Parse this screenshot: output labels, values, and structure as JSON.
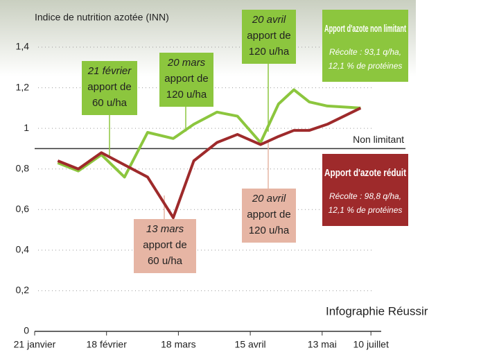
{
  "chart_data": {
    "type": "line",
    "y_label": "Indice de nutrition azotée (INN)",
    "xlim": [
      0,
      135
    ],
    "xticks": [
      {
        "value": 0,
        "label": "21 janvier"
      },
      {
        "value": 28,
        "label": "18 février"
      },
      {
        "value": 56,
        "label": "18 mars"
      },
      {
        "value": 84,
        "label": "15 avril"
      },
      {
        "value": 112,
        "label": "13 mai"
      },
      {
        "value": 131,
        "label": "10 juillet"
      }
    ],
    "ylim": [
      0,
      1.4
    ],
    "yticks": [
      0,
      {
        "value": 0.2,
        "label": "0,2"
      },
      {
        "value": 0.4,
        "label": "0,4"
      },
      {
        "value": 0.6,
        "label": "0,6"
      },
      {
        "value": 0.8,
        "label": "0,8"
      },
      1,
      {
        "value": 1.2,
        "label": "1,2"
      },
      {
        "value": 1.4,
        "label": "1,4"
      }
    ],
    "grid": true,
    "x": [
      9,
      17,
      26,
      35,
      44,
      54,
      62,
      71,
      79,
      88,
      95,
      101,
      107,
      114,
      127
    ],
    "series": [
      {
        "name": "Apport d'azote non limitant",
        "color": "#8cc63e",
        "note": [
          "Récolte : 93,1 q/ha,",
          "12,1 % de protéines"
        ],
        "values": [
          0.83,
          0.79,
          0.87,
          0.76,
          0.98,
          0.95,
          1.02,
          1.08,
          1.06,
          0.93,
          1.12,
          1.19,
          1.13,
          1.11,
          1.1
        ]
      },
      {
        "name": "Apport d'azote réduit",
        "color": "#9e2a2b",
        "note": [
          "Récolte : 98,8 q/ha,",
          "12,1 % de protéines"
        ],
        "values": [
          0.84,
          0.8,
          0.88,
          0.82,
          0.76,
          0.56,
          0.84,
          0.93,
          0.97,
          0.92,
          0.96,
          0.99,
          0.99,
          1.02,
          1.1
        ]
      }
    ],
    "threshold": {
      "value": 0.9,
      "label": "Non limitant"
    },
    "annotations": [
      {
        "lines": [
          "21 février",
          "apport de",
          "60 u/ha"
        ],
        "color": "#8cc63e"
      },
      {
        "lines": [
          "20 mars",
          "apport de",
          "120 u/ha"
        ],
        "color": "#8cc63e"
      },
      {
        "lines": [
          "20 avril",
          "apport de",
          "120 u/ha"
        ],
        "color": "#8cc63e"
      },
      {
        "lines": [
          "13 mars",
          "apport de",
          "60 u/ha"
        ],
        "color": "#e6b5a4"
      },
      {
        "lines": [
          "20 avril",
          "apport de",
          "120 u/ha"
        ],
        "color": "#e6b5a4"
      }
    ],
    "credit": "Infographie Réussir"
  }
}
